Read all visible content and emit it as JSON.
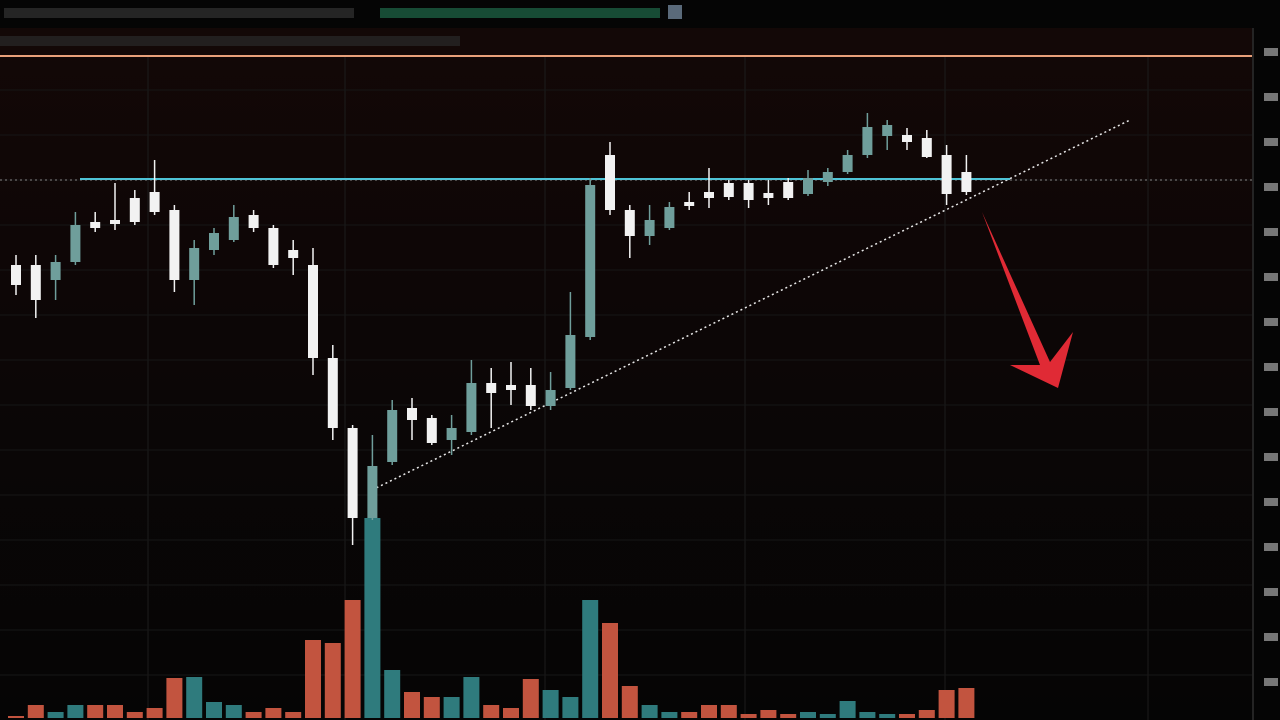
{
  "chart_data": {
    "type": "candlestick",
    "ylim": [
      0,
      720
    ],
    "up_color": "#6f9e9b",
    "down_color": "#f2f2f2",
    "open": [
      455,
      455,
      440,
      458,
      498,
      500,
      522,
      528,
      510,
      440,
      470,
      480,
      505,
      492,
      470,
      455,
      362,
      292,
      202,
      258,
      312,
      302,
      280,
      288,
      337,
      335,
      335,
      314,
      332,
      383,
      565,
      510,
      484,
      492,
      518,
      528,
      537,
      537,
      527,
      538,
      526,
      538,
      548,
      565,
      584,
      585,
      582,
      565,
      548
    ],
    "high": [
      465,
      465,
      465,
      508,
      508,
      537,
      530,
      560,
      515,
      480,
      492,
      515,
      510,
      495,
      480,
      472,
      375,
      295,
      285,
      320,
      322,
      305,
      305,
      360,
      352,
      358,
      352,
      348,
      428,
      542,
      578,
      515,
      515,
      518,
      528,
      552,
      540,
      540,
      540,
      542,
      550,
      552,
      570,
      607,
      600,
      592,
      590,
      575,
      565
    ],
    "low": [
      425,
      402,
      420,
      455,
      488,
      490,
      495,
      505,
      428,
      415,
      465,
      478,
      488,
      452,
      445,
      345,
      280,
      175,
      200,
      255,
      280,
      275,
      265,
      285,
      292,
      315,
      310,
      310,
      330,
      380,
      505,
      462,
      475,
      490,
      510,
      512,
      520,
      512,
      515,
      520,
      524,
      534,
      546,
      562,
      570,
      570,
      562,
      515,
      525
    ],
    "close": [
      435,
      420,
      458,
      495,
      492,
      496,
      498,
      508,
      440,
      472,
      487,
      503,
      492,
      455,
      462,
      362,
      292,
      202,
      254,
      310,
      300,
      277,
      292,
      337,
      327,
      330,
      314,
      330,
      385,
      535,
      510,
      484,
      500,
      513,
      514,
      522,
      523,
      520,
      522,
      522,
      542,
      548,
      565,
      593,
      595,
      578,
      563,
      526,
      528
    ],
    "volume": [
      2,
      13,
      6,
      13,
      13,
      13,
      6,
      10,
      40,
      41,
      16,
      13,
      6,
      10,
      6,
      78,
      75,
      118,
      200,
      48,
      26,
      21,
      21,
      41,
      13,
      10,
      39,
      28,
      21,
      118,
      95,
      32,
      13,
      6,
      6,
      13,
      13,
      4,
      8,
      4,
      6,
      4,
      17,
      6,
      4,
      4,
      8,
      28,
      30
    ],
    "volume_up_color": "#2f7b7d",
    "volume_down_color": "#c2543f",
    "resistance": 541,
    "resistance_color": "#4fc3d6"
  }
}
